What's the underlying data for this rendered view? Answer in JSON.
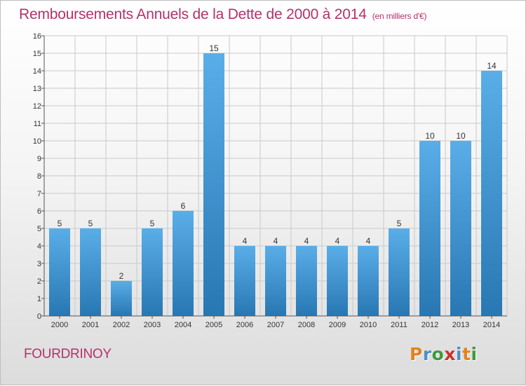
{
  "title": "Remboursements Annuels de la Dette de 2000 à 2014",
  "unit_note": "(en milliers d'€)",
  "commune": "FOURDRINOY",
  "logo": {
    "letters": [
      {
        "ch": "P",
        "color": "#e2831b"
      },
      {
        "ch": "r",
        "color": "#4a90c9"
      },
      {
        "ch": "o",
        "color": "#3c9a3c"
      },
      {
        "ch": "x",
        "color": "#c8332c"
      },
      {
        "ch": "i",
        "color": "#4a90c9"
      },
      {
        "ch": "t",
        "color": "#e2831b"
      },
      {
        "ch": "i",
        "color": "#3c9a3c"
      }
    ]
  },
  "colors": {
    "bar_top": "#5aaee8",
    "bar_bottom": "#2877b3",
    "grid": "#c9c9c9",
    "axis": "#555555",
    "title": "#b5316a"
  },
  "chart_data": {
    "type": "bar",
    "title": "Remboursements Annuels de la Dette de 2000 à 2014",
    "categories": [
      "2000",
      "2001",
      "2002",
      "2003",
      "2004",
      "2005",
      "2006",
      "2007",
      "2008",
      "2009",
      "2010",
      "2011",
      "2012",
      "2013",
      "2014"
    ],
    "values": [
      5,
      5,
      2,
      5,
      6,
      15,
      4,
      4,
      4,
      4,
      4,
      5,
      10,
      10,
      14
    ],
    "ylim": [
      0,
      16
    ],
    "yticks": [
      0,
      1,
      2,
      3,
      4,
      5,
      6,
      7,
      8,
      9,
      10,
      11,
      12,
      13,
      14,
      15,
      16
    ],
    "grid": true,
    "legend": "none"
  }
}
